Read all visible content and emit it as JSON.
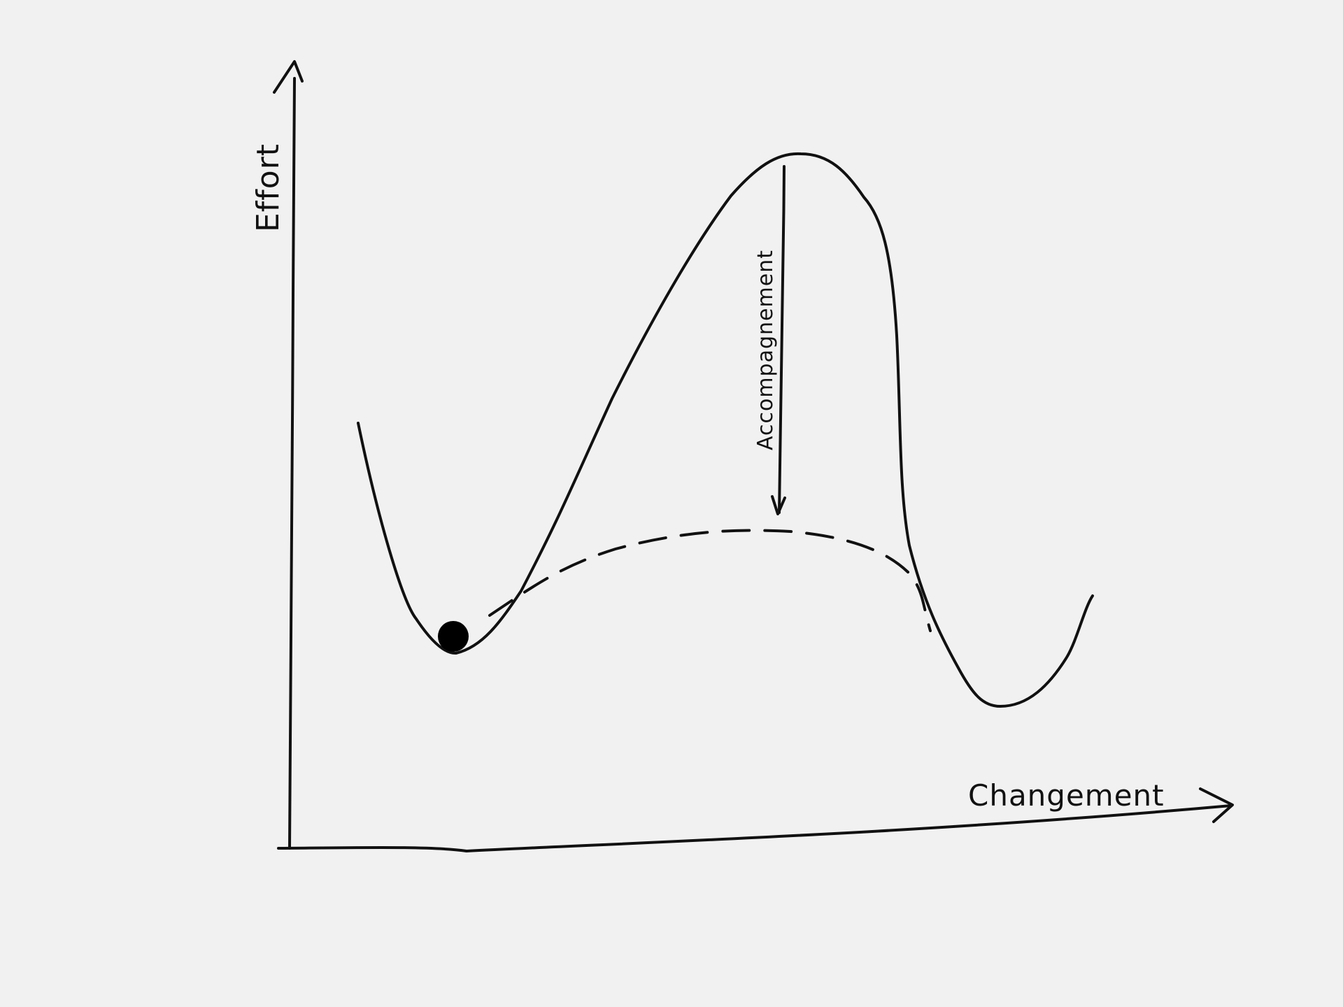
{
  "diagram": {
    "y_axis_label": "Effort",
    "x_axis_label": "Changement",
    "arrow_label": "Accompagnement",
    "colors": {
      "background": "#f1f1f1",
      "ink": "#111111"
    },
    "elements": {
      "curve": "solid energy curve with a shallow valley, a tall peak and a deeper valley",
      "dashed_curve": "lowered barrier path",
      "ball": "black ball resting in the first valley",
      "arrow": "downward arrow from the peak to the dashed curve"
    }
  }
}
